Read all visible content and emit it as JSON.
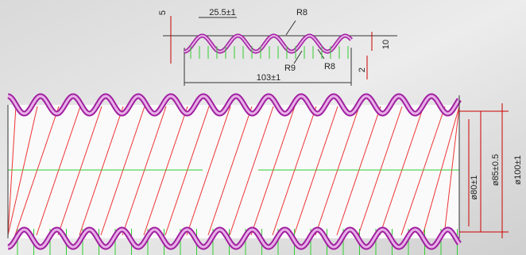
{
  "dimensions": {
    "top_offset": "5",
    "pitch": "25.5±1",
    "radius_top": "R8",
    "height": "10",
    "radius_inner": "R9",
    "radius_bottom": "R8",
    "thickness": "2",
    "length": "103±1",
    "inner_diameter": "ø80±1",
    "mid_diameter": "ø85±0.5",
    "outer_diameter": "ø100±1"
  }
}
